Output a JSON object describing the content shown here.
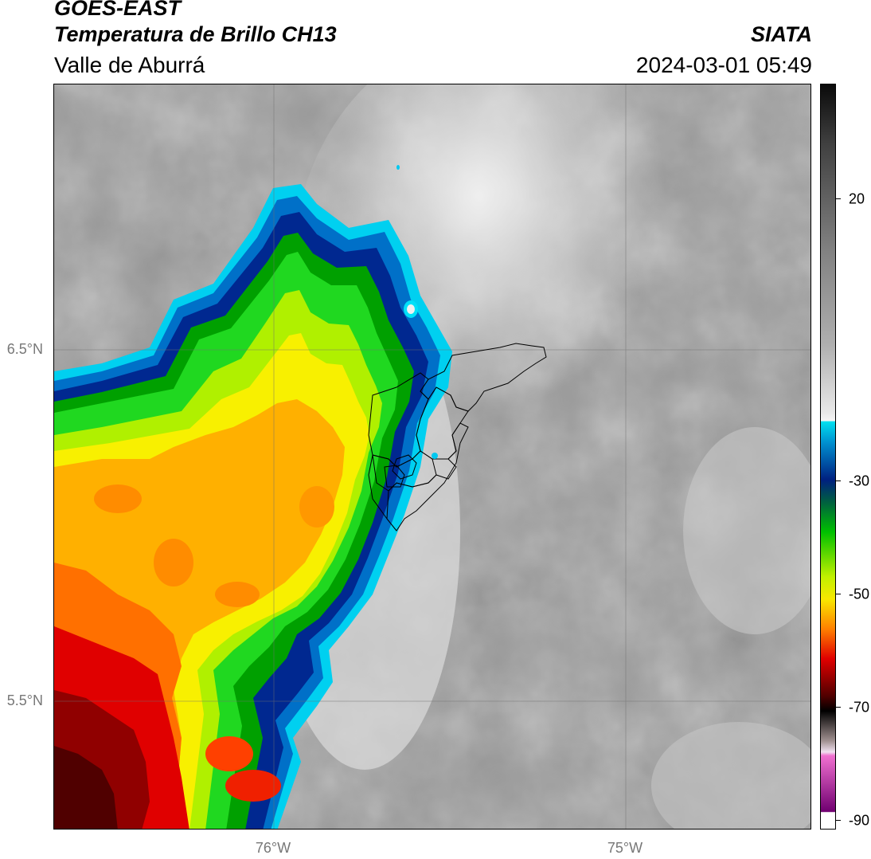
{
  "header": {
    "satellite": "GOES-EAST",
    "product": "Temperatura de Brillo CH13",
    "region": "Valle de Aburrá",
    "organization": "SIATA",
    "timestamp": "2024-03-01 05:49"
  },
  "map": {
    "lat_labels": [
      "6.5°N",
      "5.5°N"
    ],
    "lon_labels": [
      "76°W",
      "75°W"
    ],
    "lat_values": [
      6.5,
      5.5
    ],
    "lon_values": [
      -76.0,
      -75.0
    ],
    "lat_range": [
      5.13,
      7.25
    ],
    "lon_range": [
      -76.62,
      -74.47
    ],
    "gridlines": true
  },
  "colorbar": {
    "tick_labels": [
      "20",
      "-30",
      "-50",
      "-70",
      "-90"
    ],
    "tick_values": [
      20,
      -30,
      -50,
      -70,
      -90
    ],
    "range": [
      -93,
      35
    ],
    "units_shown": false
  },
  "colors": {
    "warm_gray_dark": "#7a7a7a",
    "warm_gray_light": "#e6e6e6",
    "cyan": "#00d8f0",
    "blue": "#0060c0",
    "navy": "#002080",
    "green": "#00c000",
    "yellow": "#f8f800",
    "orange": "#ffa000",
    "red": "#e00000",
    "maroon": "#600000",
    "magenta": "#d040c0"
  }
}
